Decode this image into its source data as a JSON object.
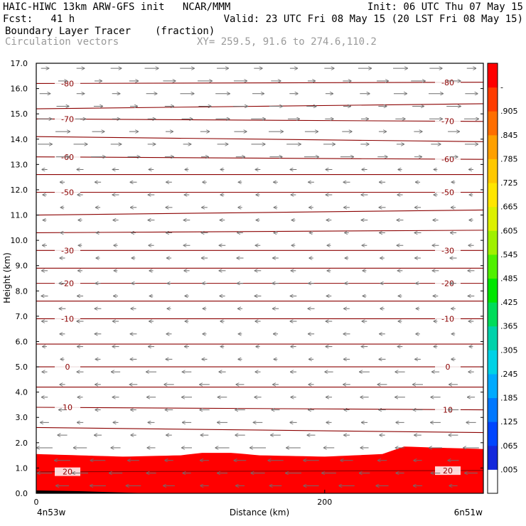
{
  "header": {
    "line1_left": "HAIC-HIWC 13km ARW-GFS init   NCAR/MMM",
    "line1_right": "Init: 06 UTC Thu 07 May 15",
    "line2_left": "Fcst:   41 h",
    "line2_right": "Valid: 23 UTC Fri 08 May 15 (20 LST Fri 08 May 15)",
    "field_name": "Boundary Layer Tracer",
    "field_units": "(fraction)",
    "vector_label": "Circulation vectors",
    "xy_label": "XY= 259.5, 91.6 to 274.6,110.2"
  },
  "chart_data": {
    "type": "heatmap",
    "title": "Boundary Layer Tracer",
    "ylabel": "Height (km)",
    "xlabel": "Distance (km)",
    "ylim": [
      0,
      17
    ],
    "xlim": [
      0,
      310
    ],
    "y_ticks": [
      "0.0",
      "1.0",
      "2.0",
      "3.0",
      "4.0",
      "5.0",
      "6.0",
      "7.0",
      "8.0",
      "9.0",
      "10.0",
      "11.0",
      "12.0",
      "13.0",
      "14.0",
      "15.0",
      "16.0",
      "17.0"
    ],
    "x_ticks": [
      {
        "value": 0,
        "label": "0"
      },
      {
        "value": 200,
        "label": "200"
      }
    ],
    "x_endpoint_labels": {
      "left": "4n53w",
      "right": "6n51w"
    },
    "colorbar": {
      "labels": [
        ".005",
        ".065",
        ".125",
        ".185",
        ".245",
        ".305",
        ".365",
        ".425",
        ".485",
        ".545",
        ".605",
        ".665",
        ".725",
        ".785",
        ".845",
        ".905",
        "-"
      ],
      "colors": [
        "#ffffff",
        "#1428dc",
        "#0046ff",
        "#0078ff",
        "#00aaff",
        "#00d2e6",
        "#00d2aa",
        "#00dc5a",
        "#00e600",
        "#50f000",
        "#a0f000",
        "#dcf000",
        "#ffe600",
        "#ffc800",
        "#ffa000",
        "#ff6e00",
        "#ff3c00",
        "#ff0000"
      ]
    },
    "temperature_contours": [
      {
        "label": "-80",
        "y_left": 16.2,
        "y_right": 16.25
      },
      {
        "label": "",
        "y_left": 15.2,
        "y_right": 15.4
      },
      {
        "label": "-70",
        "y_left": 14.8,
        "y_right": 14.7
      },
      {
        "label": "",
        "y_left": 14.1,
        "y_right": 13.9
      },
      {
        "label": "-60",
        "y_left": 13.3,
        "y_right": 13.2
      },
      {
        "label": "",
        "y_left": 12.6,
        "y_right": 12.6
      },
      {
        "label": "-50",
        "y_left": 11.9,
        "y_right": 11.9
      },
      {
        "label": "",
        "y_left": 11.0,
        "y_right": 11.2
      },
      {
        "label": "",
        "y_left": 10.3,
        "y_right": 10.4
      },
      {
        "label": "-30",
        "y_left": 9.6,
        "y_right": 9.6
      },
      {
        "label": "",
        "y_left": 8.9,
        "y_right": 8.9
      },
      {
        "label": "-20",
        "y_left": 8.3,
        "y_right": 8.3
      },
      {
        "label": "",
        "y_left": 7.6,
        "y_right": 7.6
      },
      {
        "label": "-10",
        "y_left": 6.9,
        "y_right": 6.9
      },
      {
        "label": "",
        "y_left": 5.9,
        "y_right": 5.9
      },
      {
        "label": "0",
        "y_left": 5.0,
        "y_right": 5.0
      },
      {
        "label": "",
        "y_left": 4.2,
        "y_right": 4.2
      },
      {
        "label": "10",
        "y_left": 3.4,
        "y_right": 3.3
      },
      {
        "label": "",
        "y_left": 2.6,
        "y_right": 2.4
      },
      {
        "label": "20",
        "y_left": 0.85,
        "y_right": 0.9
      }
    ],
    "tracer_top_km": [
      {
        "x": 0,
        "y": 1.55
      },
      {
        "x": 60,
        "y": 1.45
      },
      {
        "x": 100,
        "y": 1.5
      },
      {
        "x": 115,
        "y": 1.6
      },
      {
        "x": 135,
        "y": 1.6
      },
      {
        "x": 155,
        "y": 1.5
      },
      {
        "x": 200,
        "y": 1.45
      },
      {
        "x": 240,
        "y": 1.55
      },
      {
        "x": 255,
        "y": 1.85
      },
      {
        "x": 280,
        "y": 1.8
      },
      {
        "x": 310,
        "y": 1.75
      }
    ],
    "wind_regimes": [
      {
        "layer": "0-2 km",
        "direction": "westward"
      },
      {
        "layer": "2-13 km",
        "direction": "westward"
      },
      {
        "layer": "13-17 km",
        "direction": "eastward"
      }
    ]
  }
}
